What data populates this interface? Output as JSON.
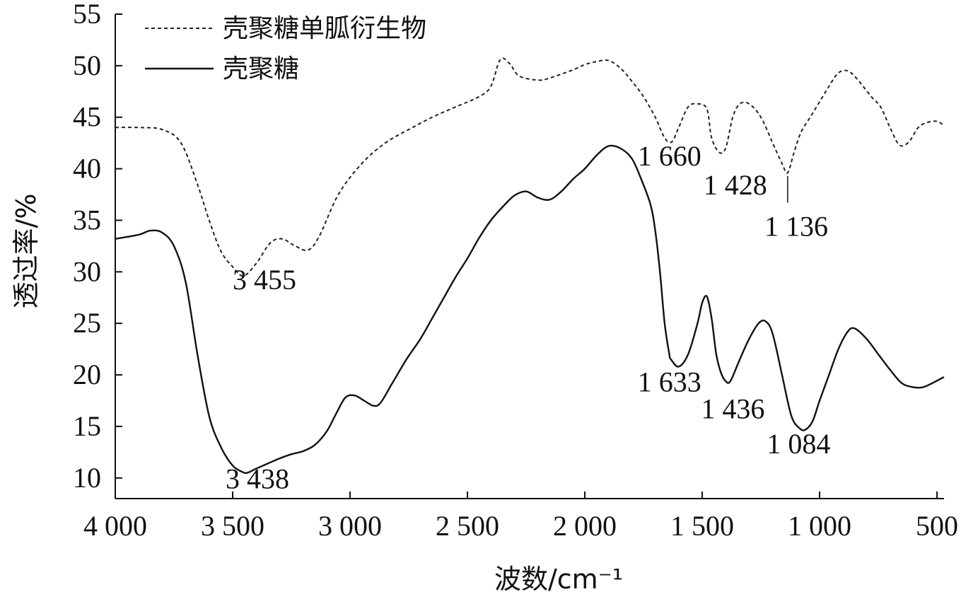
{
  "chart_data": {
    "type": "line",
    "title": "",
    "xlabel": "波数/cm⁻¹",
    "ylabel": "透过率/%",
    "xlim": [
      4000,
      470
    ],
    "ylim": [
      8,
      55
    ],
    "x_ticks": [
      4000,
      3500,
      3000,
      2500,
      2000,
      1500,
      1000,
      500
    ],
    "x_tick_labels": [
      "4 000",
      "3 500",
      "3 000",
      "2 500",
      "2 000",
      "1 500",
      "1 000",
      "500"
    ],
    "y_ticks": [
      10,
      15,
      20,
      25,
      30,
      35,
      40,
      45,
      50,
      55
    ],
    "y_tick_labels": [
      "10",
      "15",
      "20",
      "25",
      "30",
      "35",
      "40",
      "45",
      "50",
      "55"
    ],
    "grid": false,
    "legend_position": "top-left",
    "series": [
      {
        "name": "壳聚糖单胍衍生物",
        "style": "dashed",
        "color": "#222222",
        "points": [
          [
            4000,
            44
          ],
          [
            3900,
            44
          ],
          [
            3800,
            43.8
          ],
          [
            3720,
            42.5
          ],
          [
            3650,
            38.5
          ],
          [
            3600,
            35
          ],
          [
            3550,
            32
          ],
          [
            3500,
            30.5
          ],
          [
            3455,
            29.6
          ],
          [
            3400,
            30.8
          ],
          [
            3340,
            32.8
          ],
          [
            3290,
            33.2
          ],
          [
            3240,
            32.6
          ],
          [
            3180,
            32.1
          ],
          [
            3130,
            33.5
          ],
          [
            3050,
            37.5
          ],
          [
            2950,
            40.5
          ],
          [
            2850,
            42.5
          ],
          [
            2750,
            43.8
          ],
          [
            2650,
            45
          ],
          [
            2550,
            46
          ],
          [
            2450,
            47
          ],
          [
            2400,
            48
          ],
          [
            2360,
            50.6
          ],
          [
            2320,
            50.2
          ],
          [
            2280,
            49
          ],
          [
            2200,
            48.6
          ],
          [
            2150,
            48.8
          ],
          [
            2050,
            49.6
          ],
          [
            2000,
            50.1
          ],
          [
            1950,
            50.4
          ],
          [
            1900,
            50.5
          ],
          [
            1850,
            49.8
          ],
          [
            1800,
            48.5
          ],
          [
            1750,
            47
          ],
          [
            1700,
            45
          ],
          [
            1660,
            43
          ],
          [
            1630,
            42.6
          ],
          [
            1600,
            44
          ],
          [
            1560,
            46
          ],
          [
            1520,
            46.3
          ],
          [
            1480,
            45.8
          ],
          [
            1460,
            43
          ],
          [
            1428,
            41.6
          ],
          [
            1400,
            42
          ],
          [
            1370,
            45
          ],
          [
            1340,
            46.3
          ],
          [
            1300,
            46.3
          ],
          [
            1250,
            45
          ],
          [
            1200,
            42.5
          ],
          [
            1160,
            40.5
          ],
          [
            1136,
            39.6
          ],
          [
            1110,
            41.5
          ],
          [
            1080,
            43.5
          ],
          [
            1040,
            45
          ],
          [
            1000,
            46.5
          ],
          [
            960,
            48
          ],
          [
            920,
            49.3
          ],
          [
            880,
            49.5
          ],
          [
            840,
            48.7
          ],
          [
            780,
            47
          ],
          [
            740,
            46
          ],
          [
            700,
            44
          ],
          [
            660,
            42.3
          ],
          [
            620,
            42.6
          ],
          [
            580,
            44
          ],
          [
            540,
            44.5
          ],
          [
            500,
            44.6
          ],
          [
            470,
            44.2
          ]
        ]
      },
      {
        "name": "壳聚糖",
        "style": "solid",
        "color": "#111111",
        "points": [
          [
            4000,
            33.2
          ],
          [
            3900,
            33.6
          ],
          [
            3850,
            34
          ],
          [
            3800,
            33.8
          ],
          [
            3750,
            32.5
          ],
          [
            3700,
            29
          ],
          [
            3650,
            22
          ],
          [
            3600,
            16
          ],
          [
            3550,
            13
          ],
          [
            3500,
            11.2
          ],
          [
            3460,
            10.6
          ],
          [
            3438,
            10.5
          ],
          [
            3400,
            10.9
          ],
          [
            3350,
            11.4
          ],
          [
            3300,
            11.9
          ],
          [
            3250,
            12.3
          ],
          [
            3200,
            12.6
          ],
          [
            3150,
            13.2
          ],
          [
            3100,
            14.5
          ],
          [
            3060,
            16.2
          ],
          [
            3020,
            17.8
          ],
          [
            2980,
            18
          ],
          [
            2940,
            17.5
          ],
          [
            2900,
            17
          ],
          [
            2870,
            17.3
          ],
          [
            2820,
            19.2
          ],
          [
            2760,
            21.5
          ],
          [
            2700,
            23.5
          ],
          [
            2650,
            25.5
          ],
          [
            2600,
            27.5
          ],
          [
            2550,
            29.5
          ],
          [
            2500,
            31.3
          ],
          [
            2450,
            33.3
          ],
          [
            2400,
            35
          ],
          [
            2350,
            36.3
          ],
          [
            2300,
            37.4
          ],
          [
            2250,
            37.8
          ],
          [
            2200,
            37.2
          ],
          [
            2150,
            37
          ],
          [
            2100,
            37.8
          ],
          [
            2050,
            39
          ],
          [
            2000,
            40
          ],
          [
            1950,
            41.3
          ],
          [
            1900,
            42.2
          ],
          [
            1850,
            42
          ],
          [
            1800,
            41
          ],
          [
            1760,
            39
          ],
          [
            1720,
            36.5
          ],
          [
            1700,
            34
          ],
          [
            1680,
            30
          ],
          [
            1660,
            25
          ],
          [
            1640,
            22
          ],
          [
            1633,
            21.5
          ],
          [
            1600,
            20.8
          ],
          [
            1560,
            22
          ],
          [
            1520,
            25
          ],
          [
            1500,
            27
          ],
          [
            1480,
            27.6
          ],
          [
            1460,
            25.5
          ],
          [
            1440,
            22
          ],
          [
            1420,
            20.2
          ],
          [
            1400,
            19.4
          ],
          [
            1380,
            19.4
          ],
          [
            1340,
            21.5
          ],
          [
            1300,
            23.5
          ],
          [
            1260,
            25
          ],
          [
            1230,
            25.2
          ],
          [
            1200,
            24
          ],
          [
            1160,
            20
          ],
          [
            1120,
            16
          ],
          [
            1084,
            14.8
          ],
          [
            1060,
            14.7
          ],
          [
            1030,
            15.5
          ],
          [
            1000,
            17.5
          ],
          [
            960,
            20
          ],
          [
            920,
            22.5
          ],
          [
            880,
            24.2
          ],
          [
            850,
            24.5
          ],
          [
            800,
            23.5
          ],
          [
            750,
            22
          ],
          [
            700,
            20.5
          ],
          [
            650,
            19.2
          ],
          [
            600,
            18.8
          ],
          [
            560,
            18.8
          ],
          [
            520,
            19.2
          ],
          [
            470,
            19.8
          ]
        ]
      }
    ],
    "annotations": [
      {
        "text": "3 455",
        "x": 3500,
        "y": 28.3,
        "series": "壳聚糖单胍衍生物"
      },
      {
        "text": "1 660",
        "x": 1775,
        "y": 40.3,
        "series": "壳聚糖单胍衍生物"
      },
      {
        "text": "1 428",
        "x": 1495,
        "y": 37.5,
        "series": "壳聚糖单胍衍生物"
      },
      {
        "text": "1 136",
        "x": 1235,
        "y": 33.5,
        "series": "壳聚糖单胍衍生物",
        "leader": true
      },
      {
        "text": "3 438",
        "x": 3530,
        "y": 9,
        "series": "壳聚糖"
      },
      {
        "text": "1 633",
        "x": 1775,
        "y": 18.4,
        "series": "壳聚糖"
      },
      {
        "text": "1 436",
        "x": 1505,
        "y": 15.8,
        "series": "壳聚糖"
      },
      {
        "text": "1 084",
        "x": 1225,
        "y": 12.4,
        "series": "壳聚糖"
      }
    ]
  }
}
